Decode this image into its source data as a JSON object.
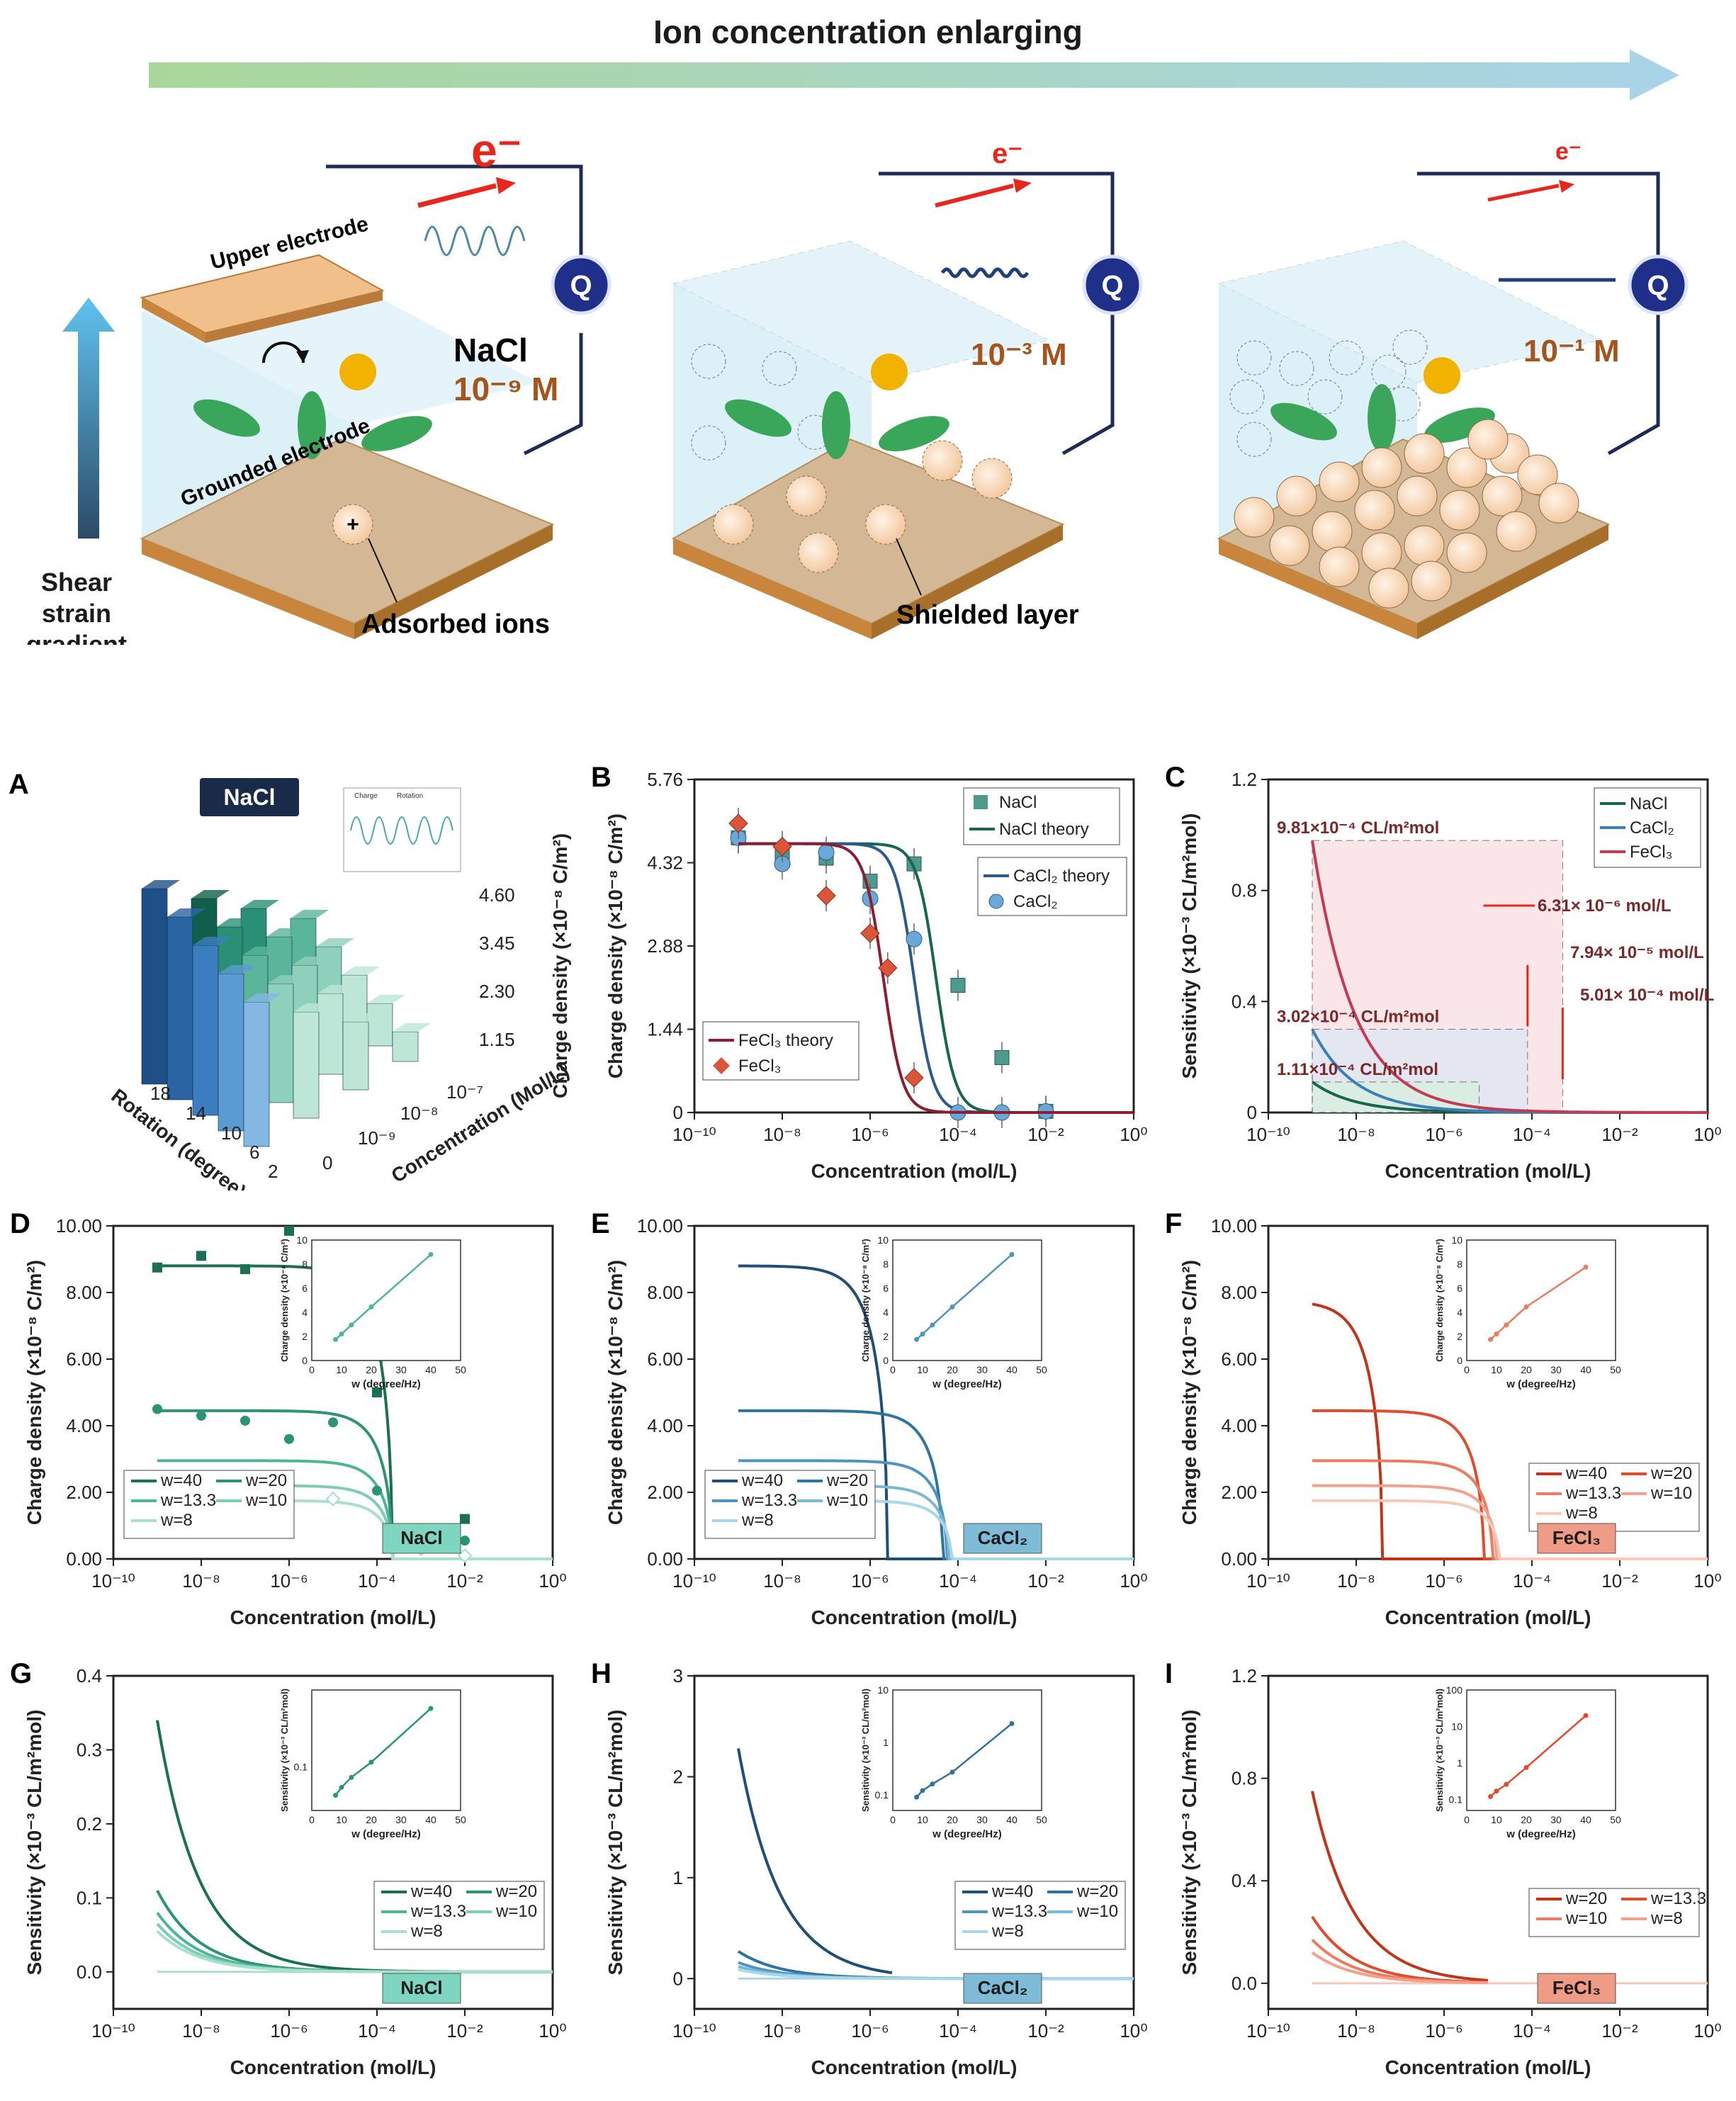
{
  "scheme": {
    "arrow_title": "Ion concentration enlarging",
    "left": {
      "electron": "e⁻",
      "upper_electrode": "Upper electrode",
      "grounded_electrode": "Grounded electrode",
      "salt": "NaCl",
      "conc": "10⁻⁹ M",
      "adsorbed": "Adsorbed ions",
      "shear": "Shear strain gradient",
      "meter": "Q"
    },
    "middle": {
      "electron": "e⁻",
      "conc": "10⁻³ M",
      "shielded": "Shielded layer",
      "meter": "Q"
    },
    "right": {
      "electron": "e⁻",
      "conc": "10⁻¹ M",
      "meter": "Q"
    }
  },
  "colors": {
    "nacl": "#17664e",
    "cacl": "#2a5b8c",
    "fecl": "#8c1d33",
    "nacl_seq": [
      "#1b6f55",
      "#2b9472",
      "#4fb597",
      "#7dcdb1",
      "#a8e0cc"
    ],
    "cacl_seq": [
      "#1f4f77",
      "#2f74a0",
      "#4e96bf",
      "#7ab8d8",
      "#a9d6ea"
    ],
    "fecl_seq": [
      "#c2331a",
      "#e04d2e",
      "#ec7c5f",
      "#f2a18c",
      "#f8c7b8"
    ]
  },
  "chart_data": [
    {
      "id": "A",
      "type": "bar3d",
      "badge": "NaCl",
      "zlabel": "Charge density (×10⁻⁸ C/m²)",
      "z_ticks": [
        "4.60",
        "3.45",
        "2.30",
        "1.15"
      ],
      "rotation_label": "Rotation (degree)",
      "rotation_ticks": [
        "18",
        "14",
        "10",
        "6",
        "2"
      ],
      "conc_label": "Concentration (Mol/L)",
      "conc_ticks": [
        "0",
        "10⁻⁹",
        "10⁻⁸",
        "10⁻⁷"
      ],
      "inset_legend": [
        "Charge",
        "Rotation"
      ]
    },
    {
      "id": "B",
      "type": "line+scatter",
      "xlabel": "Concentration (mol/L)",
      "ylabel": "Charge density (×10⁻⁸ C/m²)",
      "xlim": [
        -10,
        0
      ],
      "ylim": [
        0,
        5.76
      ],
      "yticks": [
        "0",
        "1.44",
        "2.88",
        "4.32",
        "5.76"
      ],
      "series": [
        {
          "name": "NaCl",
          "kind": "scatter",
          "marker": "square",
          "color": "#4e9a8e",
          "x": [
            -9,
            -8,
            -7,
            -6,
            -5,
            -4,
            -3,
            -2
          ],
          "y": [
            4.75,
            4.5,
            4.4,
            4.0,
            4.3,
            2.2,
            0.95,
            0.02
          ]
        },
        {
          "name": "NaCl theory",
          "kind": "line",
          "color": "#17664e",
          "a": 4.65,
          "c": 4.5
        },
        {
          "name": "CaCl₂ theory",
          "kind": "line",
          "color": "#2a5b8c",
          "a": 4.65,
          "c": 5.0
        },
        {
          "name": "CaCl₂",
          "kind": "scatter",
          "marker": "circle",
          "color": "#6aa8d8",
          "x": [
            -9,
            -8,
            -7,
            -6,
            -5,
            -4,
            -3,
            -2
          ],
          "y": [
            4.75,
            4.3,
            4.5,
            3.7,
            3.0,
            0.0,
            0.0,
            0.02
          ]
        },
        {
          "name": "FeCl₃ theory",
          "kind": "line",
          "color": "#8c1d33",
          "a": 4.65,
          "c": 5.7
        },
        {
          "name": "FeCl₃",
          "kind": "scatter",
          "marker": "diamond",
          "color": "#d9563b",
          "x": [
            -9,
            -8,
            -7,
            -6,
            -5.6,
            -5
          ],
          "y": [
            5.0,
            4.6,
            3.75,
            3.1,
            2.5,
            0.6
          ]
        }
      ]
    },
    {
      "id": "C",
      "type": "line",
      "xlabel": "Concentration (mol/L)",
      "ylabel": "Sensitivity (×10⁻³ CL/m²mol)",
      "xlim": [
        -10,
        0
      ],
      "ylim": [
        0,
        1.2
      ],
      "yticks": [
        "0",
        "0.4",
        "0.8",
        "1.2"
      ],
      "series": [
        {
          "name": "NaCl",
          "color": "#17664e",
          "peak": 0.11
        },
        {
          "name": "CaCl₂",
          "color": "#3a7fb8",
          "peak": 0.3
        },
        {
          "name": "FeCl₃",
          "color": "#c43a54",
          "peak": 0.98
        }
      ],
      "annotations": [
        "9.81×10⁻⁴ CL/m²mol",
        "3.02×10⁻⁴ CL/m²mol",
        "1.11×10⁻⁴ CL/m²mol",
        "6.31× 10⁻⁶ mol/L",
        "7.94× 10⁻⁵ mol/L",
        "5.01× 10⁻⁴ mol/L"
      ],
      "limits": [
        -5.2,
        -4.1,
        -3.3
      ]
    },
    {
      "id": "D",
      "type": "line+scatter",
      "salt": "NaCl",
      "xlabel": "Concentration (mol/L)",
      "ylabel": "Charge density (×10⁻⁸ C/m²)",
      "xlim": [
        -10,
        0
      ],
      "ylim": [
        0,
        10
      ],
      "yticks": [
        "0.00",
        "2.00",
        "4.00",
        "6.00",
        "8.00",
        "10.00"
      ],
      "legend": [
        "w=40",
        "w=20",
        "w=13.3",
        "w=10",
        "w=8"
      ],
      "curves": [
        8.8,
        4.45,
        2.95,
        2.2,
        1.75
      ],
      "cutoff": -3.65,
      "inset": {
        "ylabel": "Charge density (×10⁻⁸ C/m²)",
        "xlabel": "w (degree/Hz)",
        "x": [
          8,
          10,
          13.3,
          20,
          40
        ],
        "y": [
          1.75,
          2.2,
          2.95,
          4.45,
          8.8
        ],
        "ylim": [
          0,
          10
        ]
      }
    },
    {
      "id": "E",
      "type": "line",
      "salt": "CaCl₂",
      "xlabel": "Concentration (mol/L)",
      "ylabel": "Charge density (×10⁻⁸ C/m²)",
      "xlim": [
        -10,
        0
      ],
      "ylim": [
        0,
        10
      ],
      "yticks": [
        "0.00",
        "2.00",
        "4.00",
        "6.00",
        "8.00",
        "10.00"
      ],
      "legend": [
        "w=40",
        "w=20",
        "w=13.3",
        "w=10",
        "w=8"
      ],
      "curves": [
        8.8,
        4.45,
        2.95,
        2.2,
        1.75
      ],
      "cutoffs": [
        -5.6,
        -4.35,
        -4.25,
        -4.2,
        -4.15
      ],
      "inset": {
        "ylabel": "Charge density (×10⁻⁸ C/m²)",
        "xlabel": "w (degree/Hz)",
        "x": [
          8,
          10,
          13.3,
          20,
          40
        ],
        "y": [
          1.75,
          2.2,
          2.95,
          4.45,
          8.8
        ],
        "ylim": [
          0,
          10
        ]
      }
    },
    {
      "id": "F",
      "type": "line",
      "salt": "FeCl₃",
      "xlabel": "Concentration (mol/L)",
      "ylabel": "Charge density (×10⁻⁸ C/m²)",
      "xlim": [
        -10,
        0
      ],
      "ylim": [
        0,
        10
      ],
      "yticks": [
        "0.00",
        "2.00",
        "4.00",
        "6.00",
        "8.00",
        "10.00"
      ],
      "legend": [
        "w=40",
        "w=20",
        "w=13.3",
        "w=10",
        "w=8"
      ],
      "curves": [
        7.75,
        4.45,
        2.95,
        2.2,
        1.75
      ],
      "cutoffs": [
        -7.4,
        -5.1,
        -4.9,
        -4.8,
        -4.75
      ],
      "inset": {
        "ylabel": "Charge density (×10⁻⁸ C/m²)",
        "xlabel": "w (degree/Hz)",
        "x": [
          8,
          10,
          13.3,
          20,
          40
        ],
        "y": [
          1.75,
          2.2,
          2.95,
          4.45,
          7.75
        ],
        "ylim": [
          0,
          10
        ]
      }
    },
    {
      "id": "G",
      "type": "line",
      "salt": "NaCl",
      "xlabel": "Concentration (mol/L)",
      "ylabel": "Sensitivity (×10⁻³ CL/m²mol)",
      "xlim": [
        -10,
        0
      ],
      "ylim": [
        -0.05,
        0.4
      ],
      "yticks": [
        "0.0",
        "0.1",
        "0.2",
        "0.3",
        "0.4"
      ],
      "legend": [
        "w=40",
        "w=20",
        "w=13.3",
        "w=10",
        "w=8"
      ],
      "peaks": [
        0.34,
        0.11,
        0.08,
        0.065,
        0.055
      ],
      "inset": {
        "ylabel": "Sensitivity (×10⁻³ CL/m²mol)",
        "xlabel": "w (degree/Hz)",
        "x": [
          8,
          10,
          13.3,
          20,
          40
        ],
        "y": [
          0.055,
          0.065,
          0.08,
          0.11,
          0.34
        ]
      }
    },
    {
      "id": "H",
      "type": "line",
      "salt": "CaCl₂",
      "xlabel": "Concentration (mol/L)",
      "ylabel": "Sensitivity (×10⁻³ CL/m²mol)",
      "xlim": [
        -10,
        0
      ],
      "ylim": [
        -0.3,
        3
      ],
      "yticks": [
        "0",
        "1",
        "2",
        "3"
      ],
      "legend": [
        "w=40",
        "w=20",
        "w=13.3",
        "w=10",
        "w=8"
      ],
      "peaks": [
        2.28,
        0.27,
        0.16,
        0.12,
        0.09
      ],
      "inset": {
        "ylabel": "Sensitivity (×10⁻³ CL/m²mol)",
        "xlabel": "w (degree/Hz)",
        "x": [
          8,
          10,
          13.3,
          20,
          40
        ],
        "y": [
          0.09,
          0.12,
          0.16,
          0.27,
          2.28
        ]
      }
    },
    {
      "id": "I",
      "type": "line",
      "salt": "FeCl₃",
      "xlabel": "Concentration (mol/L)",
      "ylabel": "Sensitivity (×10⁻³ CL/m²mol)",
      "xlim": [
        -10,
        0
      ],
      "ylim": [
        -0.1,
        1.2
      ],
      "yticks": [
        "0.0",
        "0.4",
        "0.8",
        "1.2"
      ],
      "legend": [
        "w=20",
        "w=13.3",
        "w=10",
        "w=8"
      ],
      "peaks": [
        0.75,
        0.26,
        0.17,
        0.12
      ],
      "inset": {
        "ylabel": "Sensitivity (×10⁻³ CL/m²mol)",
        "xlabel": "w (degree/Hz)",
        "x": [
          8,
          10,
          13.3,
          20,
          40
        ],
        "y": [
          0.12,
          0.17,
          0.26,
          0.75,
          20
        ]
      }
    }
  ],
  "x_tick_labels": [
    "10⁻¹⁰",
    "10⁻⁸",
    "10⁻⁶",
    "10⁻⁴",
    "10⁻²",
    "10⁰"
  ],
  "inset_x_ticks": [
    "0",
    "10",
    "20",
    "30",
    "40",
    "50"
  ],
  "inset_y_ticks_lin": [
    "0",
    "2",
    "4",
    "6",
    "8",
    "10"
  ],
  "inset_y_ticks_G": [
    "0.1"
  ],
  "inset_y_ticks_H": [
    "0.1",
    "1",
    "10"
  ],
  "inset_y_ticks_I": [
    "0.1",
    "1",
    "10",
    "100"
  ]
}
